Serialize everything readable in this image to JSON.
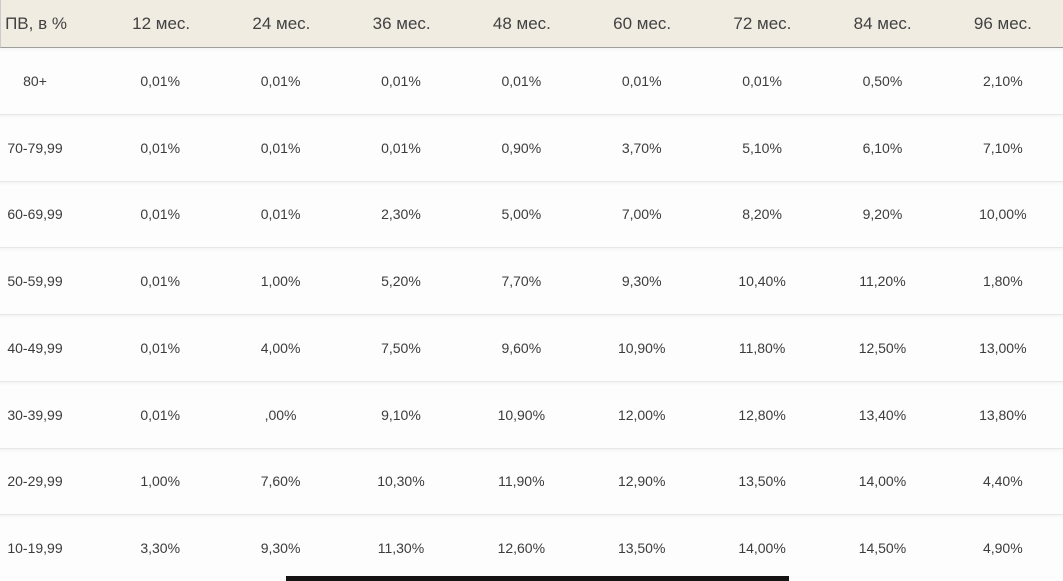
{
  "table": {
    "columns": [
      "ПВ, в %",
      "12 мес.",
      "24 мес.",
      "36 мес.",
      "48 мес.",
      "60 мес.",
      "72 мес.",
      "84 мес.",
      "96 мес."
    ],
    "rows": [
      {
        "label": "80+",
        "values": [
          "0,01%",
          "0,01%",
          "0,01%",
          "0,01%",
          "0,01%",
          "0,01%",
          "0,50%",
          "2,10%"
        ]
      },
      {
        "label": "70-79,99",
        "values": [
          "0,01%",
          "0,01%",
          "0,01%",
          "0,90%",
          "3,70%",
          "5,10%",
          "6,10%",
          "7,10%"
        ]
      },
      {
        "label": "60-69,99",
        "values": [
          "0,01%",
          "0,01%",
          "2,30%",
          "5,00%",
          "7,00%",
          "8,20%",
          "9,20%",
          "10,00%"
        ]
      },
      {
        "label": "50-59,99",
        "values": [
          "0,01%",
          "1,00%",
          "5,20%",
          "7,70%",
          "9,30%",
          "10,40%",
          "11,20%",
          "1,80%"
        ]
      },
      {
        "label": "40-49,99",
        "values": [
          "0,01%",
          "4,00%",
          "7,50%",
          "9,60%",
          "10,90%",
          "11,80%",
          "12,50%",
          "13,00%"
        ]
      },
      {
        "label": "30-39,99",
        "values": [
          "0,01%",
          ",00%",
          "9,10%",
          "10,90%",
          "12,00%",
          "12,80%",
          "13,40%",
          "13,80%"
        ]
      },
      {
        "label": "20-29,99",
        "values": [
          "1,00%",
          "7,60%",
          "10,30%",
          "11,90%",
          "12,90%",
          "13,50%",
          "14,00%",
          "4,40%"
        ]
      },
      {
        "label": "10-19,99",
        "values": [
          "3,30%",
          "9,30%",
          "11,30%",
          "12,60%",
          "13,50%",
          "14,00%",
          "14,50%",
          "4,90%"
        ]
      }
    ]
  },
  "chart_data": {
    "type": "table",
    "title": "",
    "columns": [
      "ПВ, в %",
      "12 мес.",
      "24 мес.",
      "36 мес.",
      "48 мес.",
      "60 мес.",
      "72 мес.",
      "84 мес.",
      "96 мес."
    ],
    "row_labels": [
      "80+",
      "70-79,99",
      "60-69,99",
      "50-59,99",
      "40-49,99",
      "30-39,99",
      "20-29,99",
      "10-19,99"
    ],
    "values_percent": [
      [
        0.01,
        0.01,
        0.01,
        0.01,
        0.01,
        0.01,
        0.5,
        2.1
      ],
      [
        0.01,
        0.01,
        0.01,
        0.9,
        3.7,
        5.1,
        6.1,
        7.1
      ],
      [
        0.01,
        0.01,
        2.3,
        5.0,
        7.0,
        8.2,
        9.2,
        10.0
      ],
      [
        0.01,
        1.0,
        5.2,
        7.7,
        9.3,
        10.4,
        11.2,
        1.8
      ],
      [
        0.01,
        4.0,
        7.5,
        9.6,
        10.9,
        11.8,
        12.5,
        13.0
      ],
      [
        0.01,
        0.0,
        9.1,
        10.9,
        12.0,
        12.8,
        13.4,
        13.8
      ],
      [
        1.0,
        7.6,
        10.3,
        11.9,
        12.9,
        13.5,
        14.0,
        4.4
      ],
      [
        3.3,
        9.3,
        11.3,
        12.6,
        13.5,
        14.0,
        14.5,
        4.9
      ]
    ]
  },
  "colors": {
    "header_background": "#f1ece2",
    "row_background": "#fdfdfd",
    "header_border": "#9e9e9e",
    "row_separator": "#e7e7e4",
    "text": "#3c3c3c",
    "bottom_bar": "#141414"
  }
}
